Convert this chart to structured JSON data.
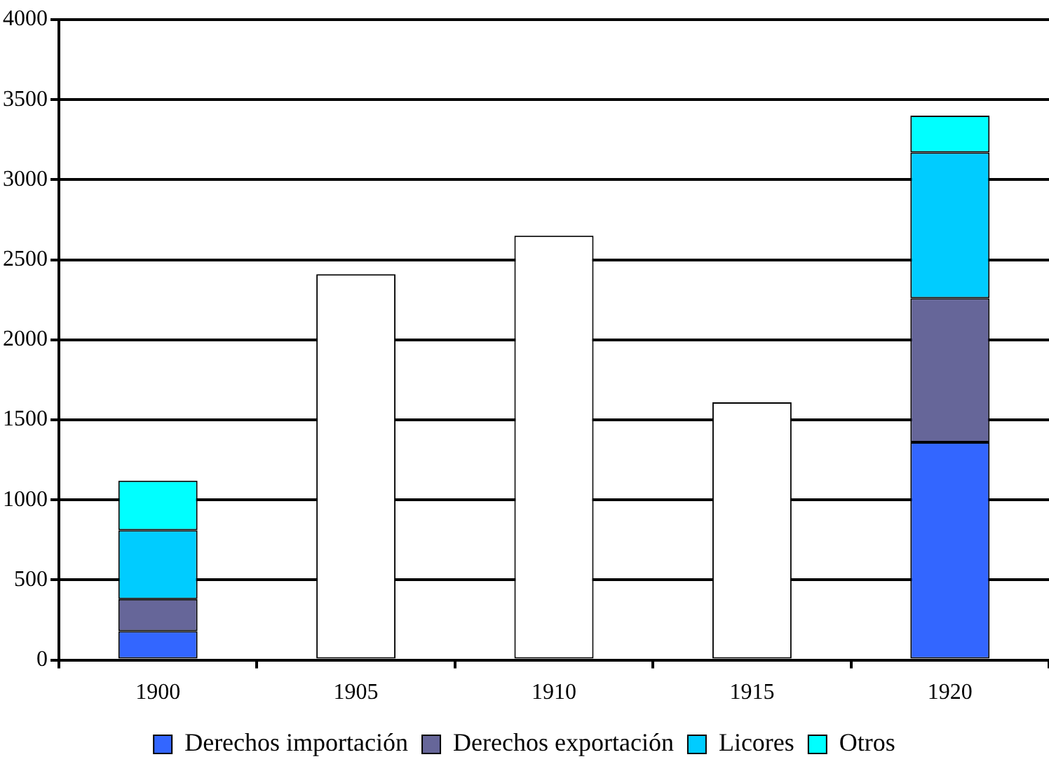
{
  "chart_data": {
    "type": "bar",
    "stacked": true,
    "categories": [
      "1900",
      "1905",
      "1910",
      "1915",
      "1920"
    ],
    "series": [
      {
        "name": "Derechos importación",
        "color": "#3366ff",
        "values": [
          180,
          null,
          null,
          null,
          1360
        ]
      },
      {
        "name": "Derechos exportación",
        "color": "#666699",
        "values": [
          200,
          null,
          null,
          null,
          900
        ]
      },
      {
        "name": "Licores",
        "color": "#00ccff",
        "values": [
          430,
          null,
          null,
          null,
          910
        ]
      },
      {
        "name": "Otros",
        "color": "#00ffff",
        "values": [
          310,
          null,
          null,
          null,
          230
        ]
      },
      {
        "color": "#ffffff",
        "values": [
          null,
          2410,
          2650,
          1610,
          null
        ]
      }
    ],
    "ylim": [
      0,
      4000
    ],
    "yticks": [
      0,
      500,
      1000,
      1500,
      2000,
      2500,
      3000,
      3500,
      4000
    ],
    "grid": "y",
    "legend": "bottom"
  }
}
